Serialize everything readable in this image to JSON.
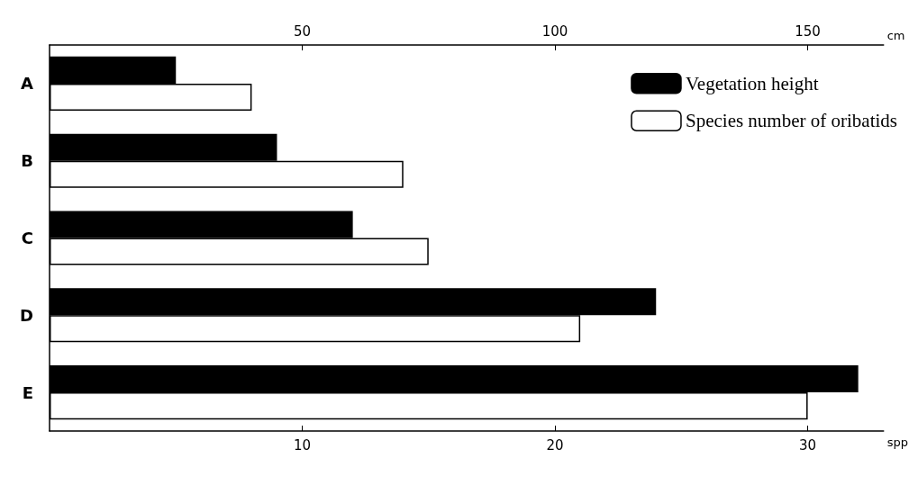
{
  "chart_data": {
    "type": "bar",
    "orientation": "horizontal",
    "categories": [
      "A",
      "B",
      "C",
      "D",
      "E"
    ],
    "series": [
      {
        "name": "Vegetation height",
        "color": "#000000",
        "axis": "x2",
        "values": [
          25,
          45,
          60,
          120,
          160
        ]
      },
      {
        "name": "Species number of oribatids",
        "color": "#ffffff",
        "values": [
          8,
          14,
          15,
          21,
          30
        ]
      }
    ],
    "xlabel": "spp",
    "x2label": "cm",
    "xlim": [
      0,
      33
    ],
    "xticks": [
      10,
      20,
      30
    ],
    "x2lim": [
      0,
      165
    ],
    "x2ticks": [
      50,
      100,
      150
    ],
    "grid": false,
    "legend": "top right"
  }
}
